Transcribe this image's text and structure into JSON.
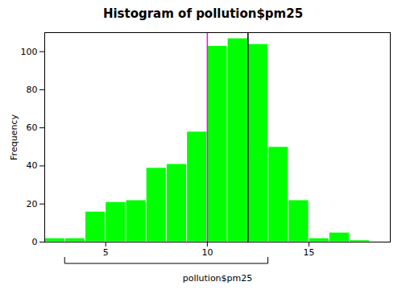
{
  "chart_data": {
    "type": "histogram",
    "title": "Histogram of pollution$pm25",
    "xlabel": "pollution$pm25",
    "ylabel": "Frequency",
    "color": "#00FF00",
    "bins": [
      2.0,
      3.0,
      4.0,
      5.0,
      6.0,
      7.0,
      8.0,
      9.0,
      10.0,
      11.0,
      12.0,
      13.0,
      14.0,
      15.0,
      16.0,
      17.0,
      18.0
    ],
    "values": [
      2,
      2,
      16,
      21,
      22,
      39,
      41,
      58,
      103,
      107,
      104,
      50,
      22,
      2,
      5,
      1
    ],
    "xlim": [
      2.0,
      19.0
    ],
    "ylim": [
      0,
      110
    ],
    "xticks": [
      5,
      10,
      15
    ],
    "yticks": [
      0,
      20,
      40,
      60,
      80,
      100
    ],
    "grid": false,
    "vlines": [
      {
        "x": 10.0,
        "color": "magenta"
      },
      {
        "x": 12.0,
        "color": "black"
      }
    ],
    "bracket": [
      3.0,
      13.0
    ]
  }
}
